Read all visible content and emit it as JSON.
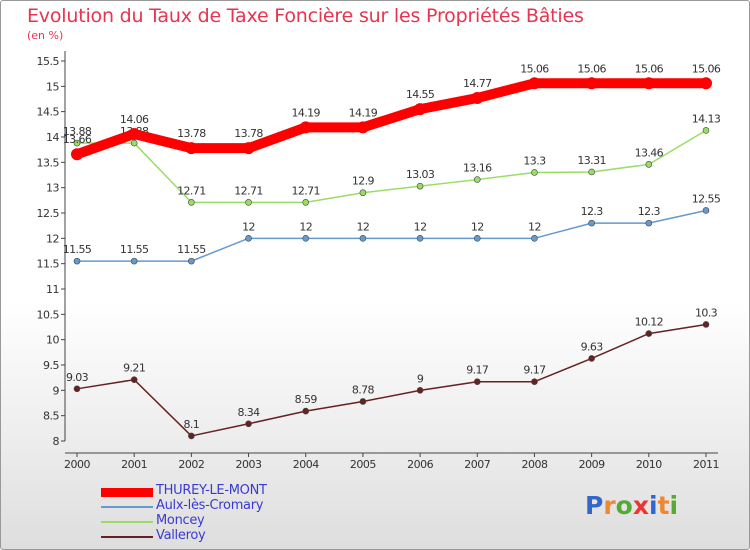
{
  "chart_data": {
    "type": "line",
    "title": "Evolution du Taux de Taxe Foncière sur les Propriétés Bâties",
    "subtitle": "(en %)",
    "x": [
      "2000",
      "2001",
      "2002",
      "2003",
      "2004",
      "2005",
      "2006",
      "2007",
      "2008",
      "2009",
      "2010",
      "2011"
    ],
    "ylim": [
      8,
      15.5
    ],
    "yticks": [
      "8",
      "8.5",
      "9",
      "9.5",
      "10",
      "10.5",
      "11",
      "11.5",
      "12",
      "12.5",
      "13",
      "13.5",
      "14",
      "14.5",
      "15",
      "15.5"
    ],
    "grid": false,
    "legend_position": "bottom-left",
    "series": [
      {
        "name": "THUREY-LE-MONT",
        "color": "#ff0000",
        "values": [
          13.66,
          14.06,
          13.78,
          13.78,
          14.19,
          14.19,
          14.55,
          14.77,
          15.06,
          15.06,
          15.06,
          15.06
        ],
        "labels": [
          "13.66",
          "14.06",
          "13.78",
          "13.78",
          "14.19",
          "14.19",
          "14.55",
          "14.77",
          "15.06",
          "15.06",
          "15.06",
          "15.06"
        ]
      },
      {
        "name": "Aulx-lès-Cromary",
        "color": "#6699cc",
        "values": [
          11.55,
          11.55,
          11.55,
          12,
          12,
          12,
          12,
          12,
          12,
          12.3,
          12.3,
          12.55
        ],
        "labels": [
          "11.55",
          "11.55",
          "11.55",
          "12",
          "12",
          "12",
          "12",
          "12",
          "12",
          "12.3",
          "12.3",
          "12.55"
        ]
      },
      {
        "name": "Moncey",
        "color": "#99dd66",
        "values": [
          13.88,
          13.88,
          12.71,
          12.71,
          12.71,
          12.9,
          13.03,
          13.16,
          13.3,
          13.31,
          13.46,
          14.13
        ],
        "labels": [
          "13.88",
          "13.88",
          "12.71",
          "12.71",
          "12.71",
          "12.9",
          "13.03",
          "13.16",
          "13.3",
          "13.31",
          "13.46",
          "14.13"
        ]
      },
      {
        "name": "Valleroy",
        "color": "#662222",
        "values": [
          9.03,
          9.21,
          8.1,
          8.34,
          8.59,
          8.78,
          9,
          9.17,
          9.17,
          9.63,
          10.12,
          10.3
        ],
        "labels": [
          "9.03",
          "9.21",
          "8.1",
          "8.34",
          "8.59",
          "8.78",
          "9",
          "9.17",
          "9.17",
          "9.63",
          "10.12",
          "10.3"
        ]
      }
    ]
  },
  "logo": {
    "letters": [
      "P",
      "r",
      "o",
      "x",
      "i",
      "t",
      "i"
    ],
    "colors": [
      "#3366cc",
      "#ee8833",
      "#55aa33",
      "#ee3333",
      "#3366cc",
      "#ee8833",
      "#55aa33"
    ]
  }
}
